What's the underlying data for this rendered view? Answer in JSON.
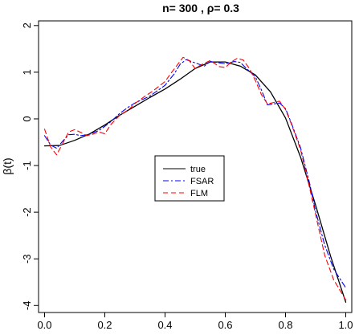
{
  "chart_data": {
    "type": "line",
    "title": "n= 300  , ρ= 0.3",
    "xlabel": "",
    "ylabel": "β(t)",
    "xlim": [
      -0.02,
      1.02
    ],
    "ylim": [
      -4.15,
      2.1
    ],
    "x_ticks": [
      0.0,
      0.2,
      0.4,
      0.6,
      0.8,
      1.0
    ],
    "x_tick_labels": [
      "0.0",
      "0.2",
      "0.4",
      "0.6",
      "0.8",
      "1.0"
    ],
    "y_ticks": [
      -4,
      -3,
      -2,
      -1,
      0,
      1,
      2
    ],
    "y_tick_labels": [
      "-4",
      "-3",
      "-2",
      "-1",
      "0",
      "1",
      "2"
    ],
    "grid": false,
    "legend_position": "center",
    "series": [
      {
        "name": "true",
        "color": "#000000",
        "line_style": "solid",
        "x": [
          0.0,
          0.05,
          0.1,
          0.15,
          0.2,
          0.25,
          0.3,
          0.35,
          0.4,
          0.45,
          0.5,
          0.55,
          0.6,
          0.65,
          0.7,
          0.75,
          0.8,
          0.85,
          0.9,
          0.95,
          1.0
        ],
        "y": [
          -0.58,
          -0.57,
          -0.46,
          -0.32,
          -0.13,
          0.08,
          0.27,
          0.46,
          0.64,
          0.85,
          1.08,
          1.22,
          1.22,
          1.13,
          0.94,
          0.58,
          0.02,
          -0.82,
          -1.85,
          -2.95,
          -3.93
        ]
      },
      {
        "name": "FSAR",
        "color": "#0000ff",
        "line_style": "dashdot",
        "x": [
          0.0,
          0.02,
          0.04,
          0.06,
          0.08,
          0.1,
          0.12,
          0.15,
          0.18,
          0.2,
          0.22,
          0.25,
          0.28,
          0.3,
          0.35,
          0.4,
          0.43,
          0.45,
          0.47,
          0.5,
          0.53,
          0.55,
          0.57,
          0.6,
          0.63,
          0.65,
          0.67,
          0.7,
          0.72,
          0.74,
          0.76,
          0.78,
          0.8,
          0.82,
          0.85,
          0.88,
          0.9,
          0.93,
          0.96,
          1.0
        ],
        "y": [
          -0.36,
          -0.56,
          -0.63,
          -0.48,
          -0.34,
          -0.33,
          -0.36,
          -0.33,
          -0.25,
          -0.16,
          -0.06,
          0.12,
          0.26,
          0.34,
          0.49,
          0.72,
          0.96,
          1.17,
          1.27,
          1.2,
          1.13,
          1.23,
          1.21,
          1.18,
          1.23,
          1.21,
          1.08,
          0.9,
          0.62,
          0.3,
          0.32,
          0.34,
          0.22,
          -0.1,
          -0.62,
          -1.38,
          -1.98,
          -2.7,
          -3.22,
          -3.62
        ]
      },
      {
        "name": "FLM",
        "color": "#ff0000",
        "line_style": "dashed",
        "x": [
          0.0,
          0.02,
          0.04,
          0.06,
          0.08,
          0.1,
          0.12,
          0.14,
          0.16,
          0.18,
          0.2,
          0.22,
          0.25,
          0.28,
          0.3,
          0.33,
          0.36,
          0.4,
          0.42,
          0.44,
          0.46,
          0.48,
          0.5,
          0.52,
          0.55,
          0.58,
          0.6,
          0.62,
          0.64,
          0.66,
          0.68,
          0.7,
          0.72,
          0.74,
          0.76,
          0.78,
          0.8,
          0.82,
          0.85,
          0.88,
          0.9,
          0.93,
          0.96,
          1.0
        ],
        "y": [
          -0.22,
          -0.6,
          -0.77,
          -0.53,
          -0.28,
          -0.23,
          -0.29,
          -0.36,
          -0.33,
          -0.28,
          -0.32,
          -0.12,
          0.08,
          0.2,
          0.33,
          0.47,
          0.6,
          0.8,
          0.98,
          1.15,
          1.32,
          1.25,
          1.08,
          1.16,
          1.25,
          1.12,
          1.1,
          1.22,
          1.3,
          1.26,
          1.08,
          0.82,
          0.52,
          0.32,
          0.35,
          0.38,
          0.2,
          -0.12,
          -0.66,
          -1.48,
          -2.05,
          -2.92,
          -3.45,
          -3.88
        ]
      }
    ]
  }
}
